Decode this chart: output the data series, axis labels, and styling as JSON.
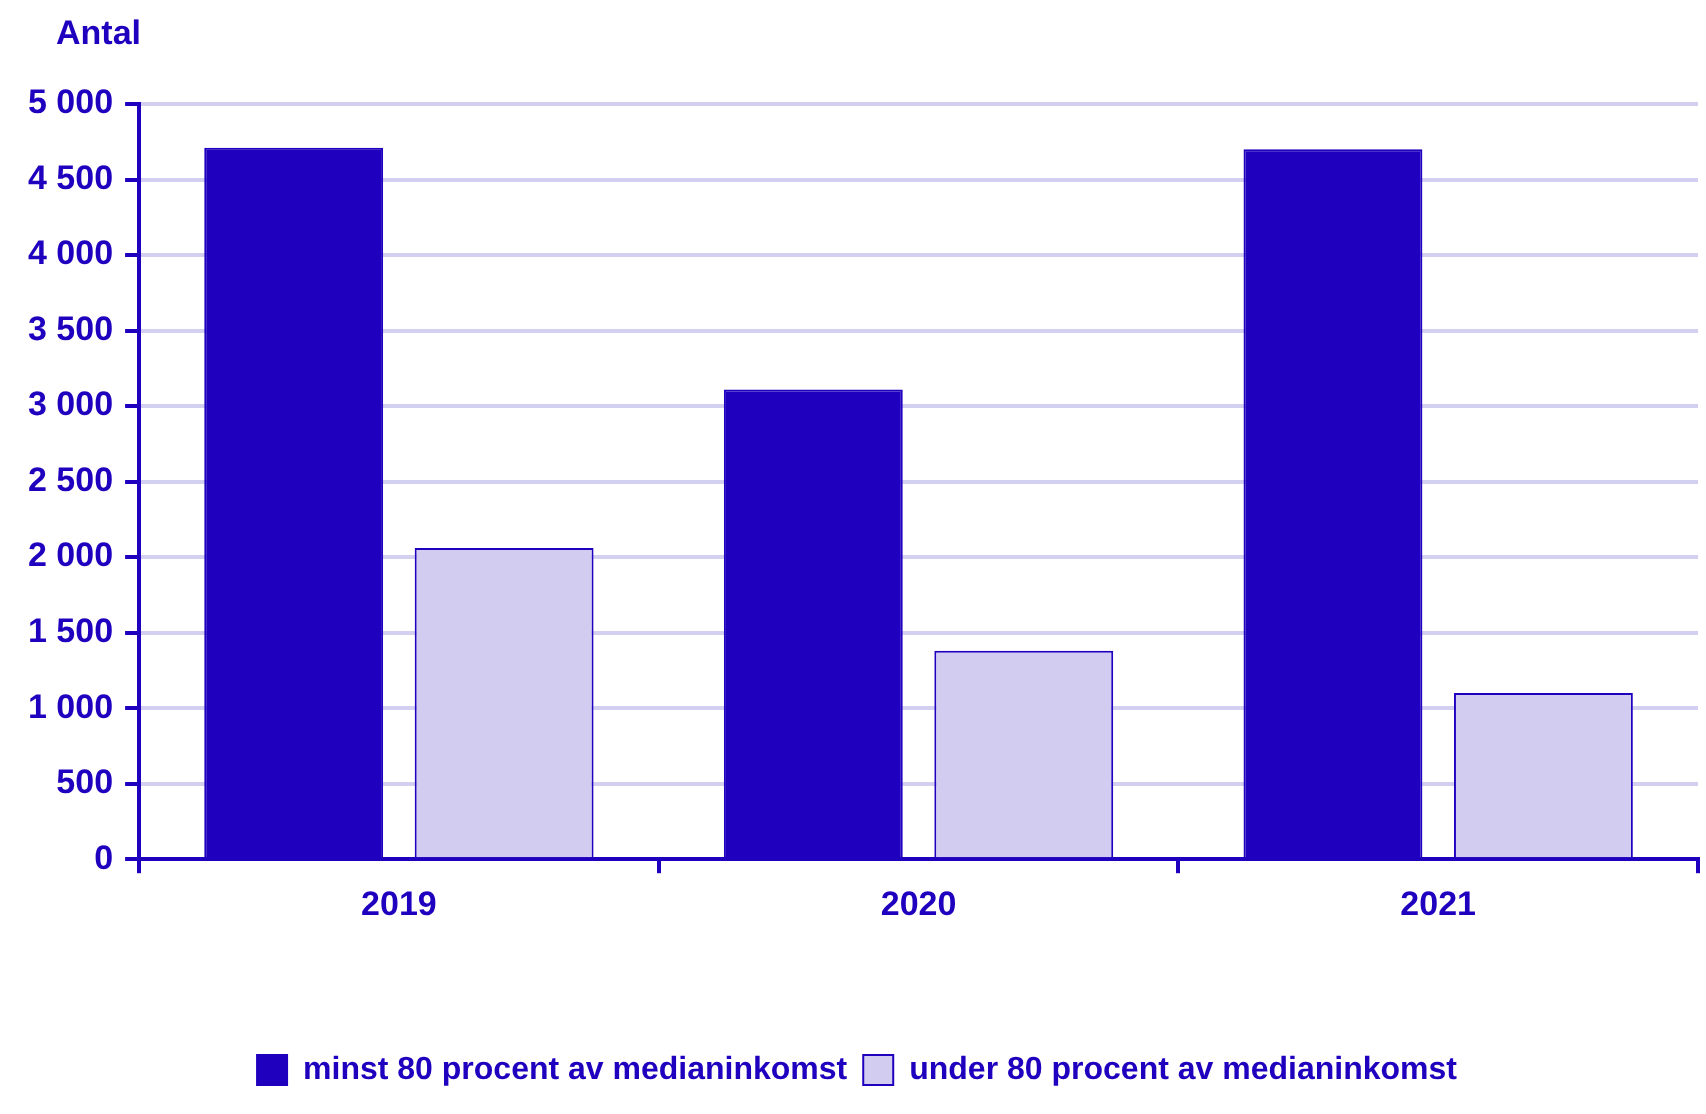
{
  "chart_data": {
    "type": "bar",
    "ylabel": "Antal",
    "categories": [
      "2019",
      "2020",
      "2021"
    ],
    "series": [
      {
        "name": "minst 80 procent av medianinkomst",
        "color": "#1f00bf",
        "values": [
          4710,
          3110,
          4700
        ]
      },
      {
        "name": "under 80 procent av medianinkomst",
        "color": "#d2cdf0",
        "values": [
          2060,
          1380,
          1100
        ]
      }
    ],
    "ylim": [
      0,
      5000
    ],
    "yticks": [
      0,
      500,
      {
        "value": 1000,
        "label": "1 000"
      },
      {
        "value": 1500,
        "label": "1 500"
      },
      {
        "value": 2000,
        "label": "2 000"
      },
      {
        "value": 2500,
        "label": "2 500"
      },
      {
        "value": 3000,
        "label": "3 000"
      },
      {
        "value": 3500,
        "label": "3 500"
      },
      {
        "value": 4000,
        "label": "4 000"
      },
      {
        "value": 4500,
        "label": "4 500"
      },
      {
        "value": 5000,
        "label": "5 000"
      }
    ],
    "grid": "y",
    "legend": "bottom"
  }
}
